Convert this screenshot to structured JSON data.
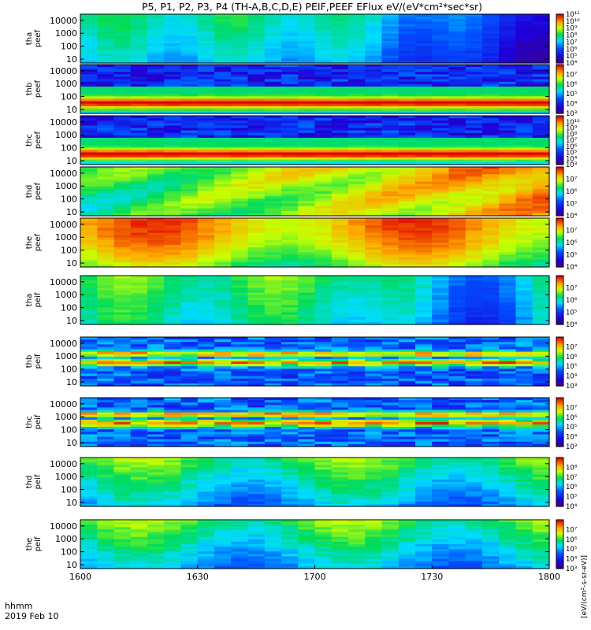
{
  "title": "P5, P1, P2, P3, P4 (TH-A,B,C,D,E) PEIF,PEEF EFlux eV/(eV*cm²*sec*sr)",
  "footer": {
    "time_label": "hhmm",
    "date_label": "2019 Feb 10"
  },
  "colorbar_unit_label": "[eV/(cm²-s-sr-eV)]",
  "chart_data": {
    "type": "heatmap",
    "title": "P5, P1, P2, P3, P4 (TH-A,B,C,D,E) PEIF,PEEF EFlux eV/(eV*cm²*sec*sr)",
    "xaxis": {
      "ticks": [
        "1600",
        "1630",
        "1700",
        "1730",
        "1800"
      ],
      "range": [
        "16:00",
        "18:00"
      ]
    },
    "yaxis": {
      "scale": "log",
      "range": [
        5,
        30000
      ],
      "ticks": [
        "10",
        "100",
        "1000",
        "10000"
      ]
    },
    "colormap": "rainbow (purple-blue-cyan-green-yellow-red)",
    "panels": [
      {
        "ylabel": [
          "tha",
          "peef"
        ],
        "cb_log_range": [
          4,
          11
        ],
        "pattern": "depleted",
        "colorbar_ticks": [
          "10¹¹",
          "10¹⁰",
          "10⁹",
          "10⁸",
          "10⁷",
          "10⁶",
          "10⁵",
          "10⁴"
        ]
      },
      {
        "ylabel": [
          "thb",
          "peef"
        ],
        "cb_log_range": [
          3,
          8
        ],
        "pattern": "noisy_top_band",
        "colorbar_ticks": [
          "10⁷",
          "10⁶",
          "10⁵",
          "10⁴",
          "10³"
        ]
      },
      {
        "ylabel": [
          "thc",
          "peef"
        ],
        "cb_log_range": [
          3,
          11
        ],
        "pattern": "noisy_top_band",
        "colorbar_ticks": [
          "10¹⁰",
          "10⁹",
          "10⁸",
          "10⁷",
          "10⁶",
          "10⁵",
          "10⁴",
          "10³"
        ]
      },
      {
        "ylabel": [
          "thd",
          "peef"
        ],
        "cb_log_range": [
          4,
          8
        ],
        "pattern": "hot",
        "colorbar_ticks": [
          "10⁷",
          "10⁶",
          "10⁵",
          "10⁴"
        ]
      },
      {
        "ylabel": [
          "the",
          "peef"
        ],
        "cb_log_range": [
          4,
          8
        ],
        "pattern": "very_hot",
        "colorbar_ticks": [
          "10⁷",
          "10⁶",
          "10⁵",
          "10⁴"
        ]
      },
      {
        "ylabel": [
          "tha",
          "peif"
        ],
        "cb_log_range": [
          4,
          8
        ],
        "pattern": "ion_cool",
        "colorbar_ticks": [
          "10⁷",
          "10⁶",
          "10⁵",
          "10⁴"
        ]
      },
      {
        "ylabel": [
          "thb",
          "peif"
        ],
        "cb_log_range": [
          3,
          8
        ],
        "pattern": "ion_bands",
        "colorbar_ticks": [
          "10⁷",
          "10⁶",
          "10⁵",
          "10⁴",
          "10³"
        ]
      },
      {
        "ylabel": [
          "thc",
          "peif"
        ],
        "cb_log_range": [
          3,
          8
        ],
        "pattern": "ion_bands",
        "colorbar_ticks": [
          "10⁷",
          "10⁶",
          "10⁵",
          "10⁴",
          "10³"
        ]
      },
      {
        "ylabel": [
          "thd",
          "peif"
        ],
        "cb_log_range": [
          4,
          9
        ],
        "pattern": "ion_green",
        "colorbar_ticks": [
          "10⁸",
          "10⁷",
          "10⁶",
          "10⁵",
          "10⁴"
        ]
      },
      {
        "ylabel": [
          "the",
          "peif"
        ],
        "cb_log_range": [
          3,
          8
        ],
        "pattern": "ion_green",
        "colorbar_ticks": [
          "10⁷",
          "10⁶",
          "10⁵",
          "10⁴",
          "10³"
        ]
      }
    ]
  }
}
